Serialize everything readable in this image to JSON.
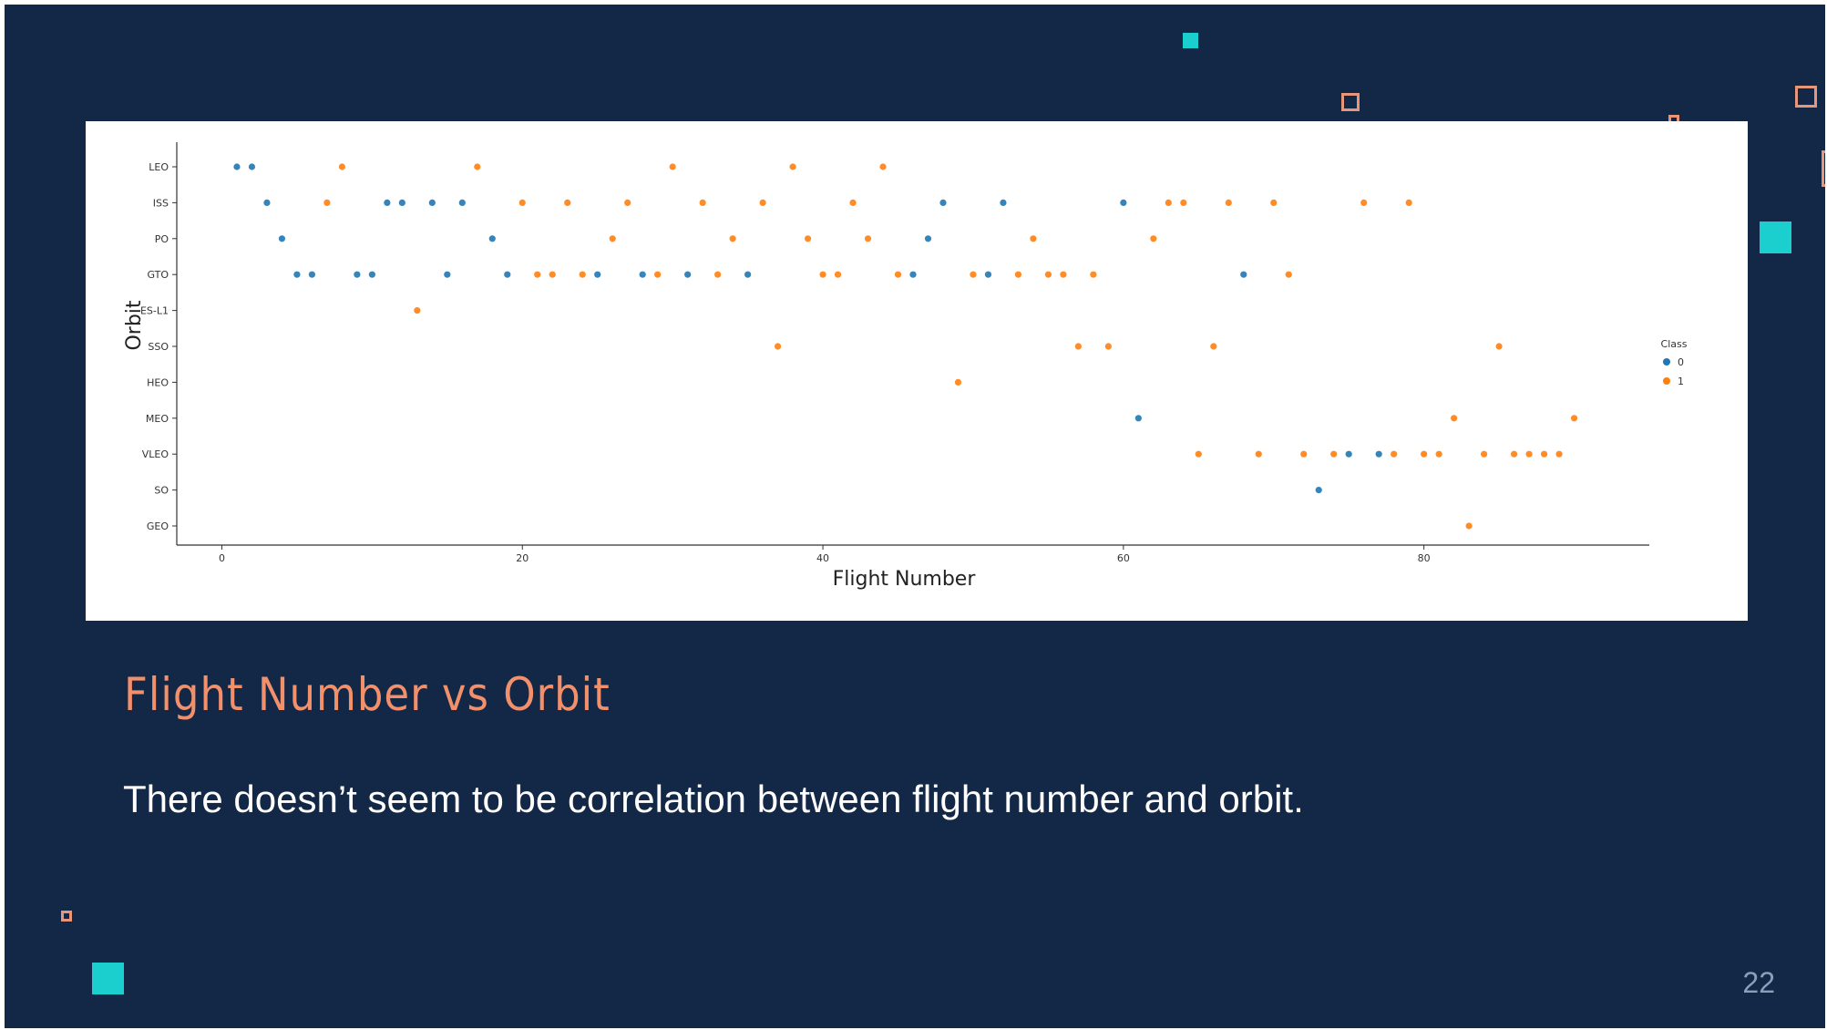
{
  "slide": {
    "title": "Flight Number vs Orbit",
    "body": "There doesn’t seem to be correlation between flight number and orbit.",
    "page_number": "22",
    "background_color": "#122846",
    "accent_teal": "#1ccfcf",
    "accent_salmon": "#e8967a"
  },
  "chart_data": {
    "type": "scatter",
    "title": "",
    "xlabel": "Flight Number",
    "ylabel": "Orbit",
    "xlim": [
      -3,
      95
    ],
    "xticks": [
      0,
      20,
      40,
      60,
      80
    ],
    "categories": [
      "LEO",
      "ISS",
      "PO",
      "GTO",
      "ES-L1",
      "SSO",
      "HEO",
      "MEO",
      "VLEO",
      "SO",
      "GEO"
    ],
    "legend": {
      "title": "Class",
      "entries": [
        "0",
        "1"
      ],
      "placement": "right"
    },
    "series": [
      {
        "name": "0",
        "color": "#1f77b4",
        "points": [
          [
            1,
            "LEO"
          ],
          [
            2,
            "LEO"
          ],
          [
            3,
            "ISS"
          ],
          [
            4,
            "PO"
          ],
          [
            5,
            "GTO"
          ],
          [
            6,
            "GTO"
          ],
          [
            9,
            "GTO"
          ],
          [
            10,
            "GTO"
          ],
          [
            11,
            "ISS"
          ],
          [
            12,
            "ISS"
          ],
          [
            14,
            "ISS"
          ],
          [
            15,
            "GTO"
          ],
          [
            16,
            "ISS"
          ],
          [
            18,
            "PO"
          ],
          [
            19,
            "GTO"
          ],
          [
            25,
            "GTO"
          ],
          [
            28,
            "GTO"
          ],
          [
            31,
            "GTO"
          ],
          [
            35,
            "GTO"
          ],
          [
            46,
            "GTO"
          ],
          [
            47,
            "PO"
          ],
          [
            48,
            "ISS"
          ],
          [
            51,
            "GTO"
          ],
          [
            52,
            "ISS"
          ],
          [
            60,
            "ISS"
          ],
          [
            61,
            "MEO"
          ],
          [
            68,
            "GTO"
          ],
          [
            73,
            "SO"
          ],
          [
            75,
            "VLEO"
          ],
          [
            77,
            "VLEO"
          ]
        ]
      },
      {
        "name": "1",
        "color": "#ff7f0e",
        "points": [
          [
            7,
            "ISS"
          ],
          [
            8,
            "LEO"
          ],
          [
            13,
            "ES-L1"
          ],
          [
            17,
            "LEO"
          ],
          [
            20,
            "ISS"
          ],
          [
            21,
            "GTO"
          ],
          [
            22,
            "GTO"
          ],
          [
            23,
            "ISS"
          ],
          [
            24,
            "GTO"
          ],
          [
            26,
            "PO"
          ],
          [
            27,
            "ISS"
          ],
          [
            29,
            "GTO"
          ],
          [
            30,
            "LEO"
          ],
          [
            32,
            "ISS"
          ],
          [
            33,
            "GTO"
          ],
          [
            34,
            "PO"
          ],
          [
            36,
            "ISS"
          ],
          [
            37,
            "SSO"
          ],
          [
            38,
            "LEO"
          ],
          [
            39,
            "PO"
          ],
          [
            40,
            "GTO"
          ],
          [
            41,
            "GTO"
          ],
          [
            42,
            "ISS"
          ],
          [
            43,
            "PO"
          ],
          [
            44,
            "LEO"
          ],
          [
            45,
            "GTO"
          ],
          [
            49,
            "HEO"
          ],
          [
            50,
            "GTO"
          ],
          [
            53,
            "GTO"
          ],
          [
            54,
            "PO"
          ],
          [
            55,
            "GTO"
          ],
          [
            56,
            "GTO"
          ],
          [
            57,
            "SSO"
          ],
          [
            58,
            "GTO"
          ],
          [
            59,
            "SSO"
          ],
          [
            62,
            "PO"
          ],
          [
            63,
            "ISS"
          ],
          [
            64,
            "ISS"
          ],
          [
            65,
            "VLEO"
          ],
          [
            66,
            "SSO"
          ],
          [
            67,
            "ISS"
          ],
          [
            69,
            "VLEO"
          ],
          [
            70,
            "ISS"
          ],
          [
            71,
            "GTO"
          ],
          [
            72,
            "VLEO"
          ],
          [
            74,
            "VLEO"
          ],
          [
            76,
            "ISS"
          ],
          [
            78,
            "VLEO"
          ],
          [
            79,
            "ISS"
          ],
          [
            80,
            "VLEO"
          ],
          [
            81,
            "VLEO"
          ],
          [
            82,
            "MEO"
          ],
          [
            83,
            "GEO"
          ],
          [
            84,
            "VLEO"
          ],
          [
            85,
            "SSO"
          ],
          [
            86,
            "VLEO"
          ],
          [
            87,
            "VLEO"
          ],
          [
            88,
            "VLEO"
          ],
          [
            89,
            "VLEO"
          ],
          [
            90,
            "MEO"
          ]
        ]
      }
    ]
  }
}
